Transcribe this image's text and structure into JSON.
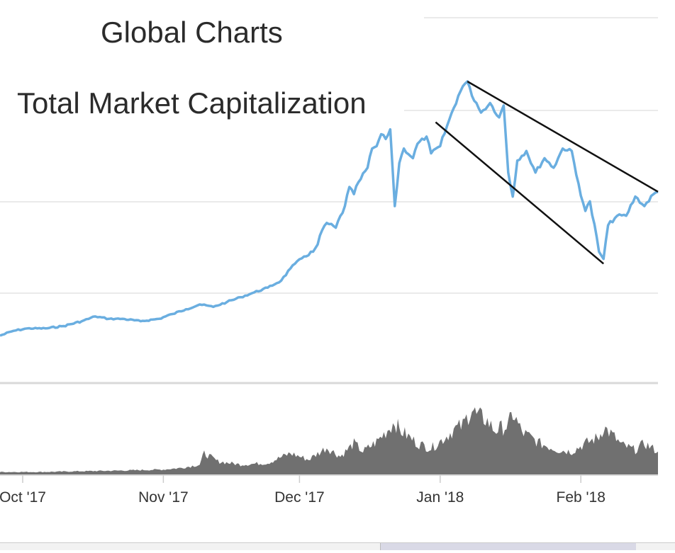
{
  "chart_data": {
    "type": "line",
    "title": "Global Charts",
    "subtitle": "Total Market Capitalization",
    "x_ticks": [
      "Oct '17",
      "Nov '17",
      "Dec '17",
      "Jan '18",
      "Feb '18"
    ],
    "x_range": [
      "2017-09-26",
      "2018-02-18"
    ],
    "grid": true,
    "legend": "none",
    "series": [
      {
        "role": "market-cap",
        "color": "#6aaee0",
        "points": [
          [
            "2017-09-26",
            0.06
          ],
          [
            "2017-09-29",
            0.08
          ],
          [
            "2017-10-02",
            0.09
          ],
          [
            "2017-10-06",
            0.09
          ],
          [
            "2017-10-10",
            0.1
          ],
          [
            "2017-10-14",
            0.12
          ],
          [
            "2017-10-17",
            0.14
          ],
          [
            "2017-10-20",
            0.13
          ],
          [
            "2017-10-23",
            0.13
          ],
          [
            "2017-10-27",
            0.12
          ],
          [
            "2017-10-31",
            0.13
          ],
          [
            "2017-11-03",
            0.15
          ],
          [
            "2017-11-06",
            0.17
          ],
          [
            "2017-11-09",
            0.19
          ],
          [
            "2017-11-12",
            0.18
          ],
          [
            "2017-11-15",
            0.2
          ],
          [
            "2017-11-18",
            0.22
          ],
          [
            "2017-11-21",
            0.24
          ],
          [
            "2017-11-24",
            0.26
          ],
          [
            "2017-11-27",
            0.29
          ],
          [
            "2017-11-29",
            0.34
          ],
          [
            "2017-11-30",
            0.36
          ],
          [
            "2017-12-02",
            0.39
          ],
          [
            "2017-12-04",
            0.41
          ],
          [
            "2017-12-05",
            0.44
          ],
          [
            "2017-12-06",
            0.5
          ],
          [
            "2017-12-07",
            0.53
          ],
          [
            "2017-12-09",
            0.51
          ],
          [
            "2017-12-11",
            0.6
          ],
          [
            "2017-12-12",
            0.68
          ],
          [
            "2017-12-13",
            0.65
          ],
          [
            "2017-12-14",
            0.7
          ],
          [
            "2017-12-16",
            0.76
          ],
          [
            "2017-12-17",
            0.84
          ],
          [
            "2017-12-18",
            0.85
          ],
          [
            "2017-12-19",
            0.9
          ],
          [
            "2017-12-20",
            0.88
          ],
          [
            "2017-12-21",
            0.92
          ],
          [
            "2017-12-22",
            0.6
          ],
          [
            "2017-12-23",
            0.78
          ],
          [
            "2017-12-24",
            0.84
          ],
          [
            "2017-12-26",
            0.8
          ],
          [
            "2017-12-27",
            0.86
          ],
          [
            "2017-12-29",
            0.89
          ],
          [
            "2017-12-30",
            0.82
          ],
          [
            "2018-01-01",
            0.85
          ],
          [
            "2018-01-03",
            0.96
          ],
          [
            "2018-01-05",
            1.06
          ],
          [
            "2018-01-06",
            1.1
          ],
          [
            "2018-01-07",
            1.12
          ],
          [
            "2018-01-08",
            1.06
          ],
          [
            "2018-01-09",
            1.03
          ],
          [
            "2018-01-10",
            0.99
          ],
          [
            "2018-01-12",
            1.03
          ],
          [
            "2018-01-14",
            0.97
          ],
          [
            "2018-01-15",
            1.02
          ],
          [
            "2018-01-16",
            0.74
          ],
          [
            "2018-01-17",
            0.64
          ],
          [
            "2018-01-18",
            0.79
          ],
          [
            "2018-01-20",
            0.83
          ],
          [
            "2018-01-22",
            0.74
          ],
          [
            "2018-01-24",
            0.8
          ],
          [
            "2018-01-26",
            0.76
          ],
          [
            "2018-01-28",
            0.84
          ],
          [
            "2018-01-30",
            0.83
          ],
          [
            "2018-01-31",
            0.73
          ],
          [
            "2018-02-02",
            0.58
          ],
          [
            "2018-02-03",
            0.62
          ],
          [
            "2018-02-05",
            0.41
          ],
          [
            "2018-02-06",
            0.38
          ],
          [
            "2018-02-07",
            0.52
          ],
          [
            "2018-02-09",
            0.56
          ],
          [
            "2018-02-11",
            0.56
          ],
          [
            "2018-02-13",
            0.64
          ],
          [
            "2018-02-15",
            0.6
          ],
          [
            "2018-02-17",
            0.65
          ],
          [
            "2018-02-18",
            0.66
          ]
        ]
      },
      {
        "role": "volume",
        "type": "area",
        "color": "#707070",
        "points": [
          [
            "2017-09-26",
            0.03
          ],
          [
            "2017-10-05",
            0.03
          ],
          [
            "2017-10-15",
            0.04
          ],
          [
            "2017-10-25",
            0.05
          ],
          [
            "2017-11-01",
            0.06
          ],
          [
            "2017-11-05",
            0.08
          ],
          [
            "2017-11-09",
            0.12
          ],
          [
            "2017-11-10",
            0.26
          ],
          [
            "2017-11-13",
            0.16
          ],
          [
            "2017-11-18",
            0.12
          ],
          [
            "2017-11-24",
            0.14
          ],
          [
            "2017-11-29",
            0.26
          ],
          [
            "2017-12-03",
            0.18
          ],
          [
            "2017-12-07",
            0.33
          ],
          [
            "2017-12-10",
            0.22
          ],
          [
            "2017-12-13",
            0.38
          ],
          [
            "2017-12-15",
            0.28
          ],
          [
            "2017-12-18",
            0.4
          ],
          [
            "2017-12-20",
            0.52
          ],
          [
            "2017-12-22",
            0.65
          ],
          [
            "2017-12-23",
            0.55
          ],
          [
            "2017-12-27",
            0.38
          ],
          [
            "2017-12-30",
            0.32
          ],
          [
            "2018-01-02",
            0.45
          ],
          [
            "2018-01-04",
            0.55
          ],
          [
            "2018-01-06",
            0.6
          ],
          [
            "2018-01-08",
            0.82
          ],
          [
            "2018-01-09",
            0.72
          ],
          [
            "2018-01-11",
            0.68
          ],
          [
            "2018-01-13",
            0.54
          ],
          [
            "2018-01-16",
            0.6
          ],
          [
            "2018-01-17",
            0.75
          ],
          [
            "2018-01-19",
            0.52
          ],
          [
            "2018-01-23",
            0.38
          ],
          [
            "2018-01-27",
            0.3
          ],
          [
            "2018-01-30",
            0.28
          ],
          [
            "2018-02-02",
            0.38
          ],
          [
            "2018-02-05",
            0.46
          ],
          [
            "2018-02-06",
            0.58
          ],
          [
            "2018-02-08",
            0.48
          ],
          [
            "2018-02-10",
            0.36
          ],
          [
            "2018-02-13",
            0.3
          ],
          [
            "2018-02-15",
            0.38
          ],
          [
            "2018-02-18",
            0.28
          ]
        ]
      }
    ],
    "annotations": [
      {
        "type": "trendline",
        "color": "#111111",
        "from": [
          "2018-01-07",
          1.12
        ],
        "to": [
          "2018-02-18",
          0.66
        ]
      },
      {
        "type": "trendline",
        "color": "#111111",
        "from": [
          "2017-12-31",
          0.95
        ],
        "to": [
          "2018-02-06",
          0.36
        ]
      }
    ]
  }
}
